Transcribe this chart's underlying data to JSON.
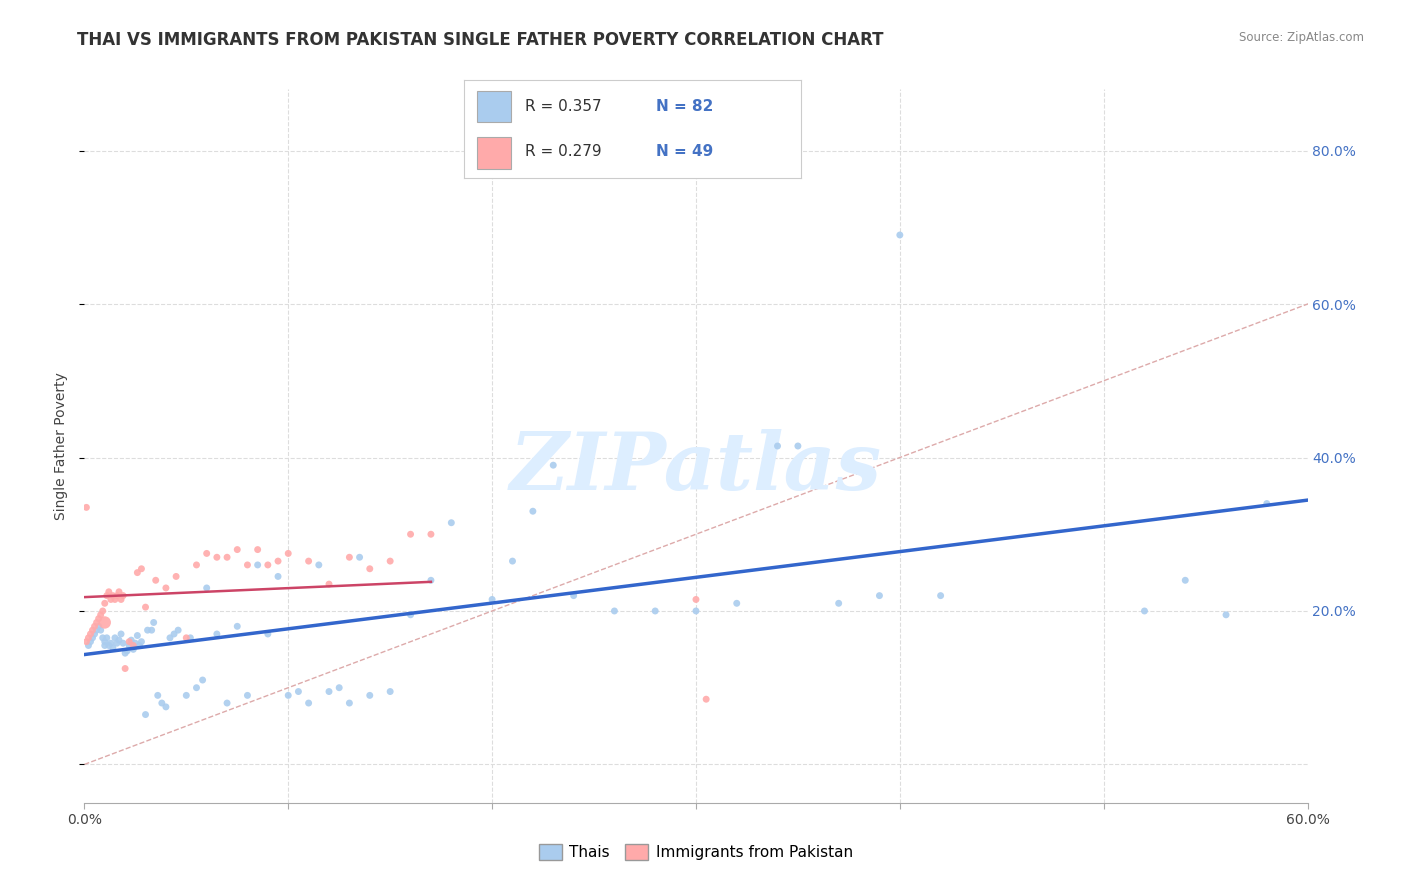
{
  "title": "THAI VS IMMIGRANTS FROM PAKISTAN SINGLE FATHER POVERTY CORRELATION CHART",
  "source": "Source: ZipAtlas.com",
  "ylabel": "Single Father Poverty",
  "xlim": [
    0.0,
    0.6
  ],
  "ylim": [
    -0.05,
    0.88
  ],
  "thai_color": "#aaccee",
  "pak_color": "#ffaaaa",
  "trend_thai_color": "#3366cc",
  "trend_pak_color": "#cc4466",
  "diag_color": "#ddaaaa",
  "watermark": "ZIPatlas",
  "watermark_color": "#ddeeff",
  "thai_R": 0.357,
  "thai_N": 82,
  "pak_R": 0.279,
  "pak_N": 49,
  "thai_x": [
    0.002,
    0.003,
    0.004,
    0.005,
    0.006,
    0.007,
    0.008,
    0.009,
    0.01,
    0.01,
    0.011,
    0.012,
    0.013,
    0.014,
    0.015,
    0.016,
    0.017,
    0.018,
    0.019,
    0.02,
    0.021,
    0.022,
    0.023,
    0.024,
    0.025,
    0.026,
    0.027,
    0.028,
    0.03,
    0.031,
    0.033,
    0.034,
    0.036,
    0.038,
    0.04,
    0.042,
    0.044,
    0.046,
    0.05,
    0.052,
    0.055,
    0.058,
    0.06,
    0.065,
    0.07,
    0.075,
    0.08,
    0.085,
    0.09,
    0.095,
    0.1,
    0.105,
    0.11,
    0.115,
    0.12,
    0.125,
    0.13,
    0.135,
    0.14,
    0.15,
    0.16,
    0.17,
    0.18,
    0.2,
    0.21,
    0.22,
    0.23,
    0.24,
    0.26,
    0.28,
    0.3,
    0.32,
    0.34,
    0.35,
    0.37,
    0.39,
    0.4,
    0.42,
    0.52,
    0.54,
    0.56,
    0.58
  ],
  "thai_y": [
    0.155,
    0.16,
    0.165,
    0.17,
    0.175,
    0.18,
    0.175,
    0.165,
    0.155,
    0.16,
    0.165,
    0.155,
    0.158,
    0.152,
    0.165,
    0.158,
    0.162,
    0.17,
    0.158,
    0.145,
    0.148,
    0.155,
    0.162,
    0.15,
    0.158,
    0.168,
    0.155,
    0.16,
    0.065,
    0.175,
    0.175,
    0.185,
    0.09,
    0.08,
    0.075,
    0.165,
    0.17,
    0.175,
    0.09,
    0.165,
    0.1,
    0.11,
    0.23,
    0.17,
    0.08,
    0.18,
    0.09,
    0.26,
    0.17,
    0.245,
    0.09,
    0.095,
    0.08,
    0.26,
    0.095,
    0.1,
    0.08,
    0.27,
    0.09,
    0.095,
    0.195,
    0.24,
    0.315,
    0.215,
    0.265,
    0.33,
    0.39,
    0.22,
    0.2,
    0.2,
    0.2,
    0.21,
    0.415,
    0.415,
    0.21,
    0.22,
    0.69,
    0.22,
    0.2,
    0.24,
    0.195,
    0.34
  ],
  "thai_sizes": [
    25,
    25,
    25,
    25,
    25,
    25,
    25,
    25,
    25,
    25,
    25,
    25,
    25,
    25,
    25,
    25,
    25,
    25,
    25,
    25,
    25,
    25,
    25,
    25,
    25,
    25,
    25,
    25,
    25,
    25,
    25,
    25,
    25,
    25,
    25,
    25,
    25,
    25,
    25,
    25,
    25,
    25,
    25,
    25,
    25,
    25,
    25,
    25,
    25,
    25,
    25,
    25,
    25,
    25,
    25,
    25,
    25,
    25,
    25,
    25,
    25,
    25,
    25,
    25,
    25,
    25,
    25,
    25,
    25,
    25,
    25,
    25,
    25,
    25,
    25,
    25,
    25,
    25,
    25,
    25,
    25,
    25
  ],
  "pak_x": [
    0.001,
    0.002,
    0.003,
    0.004,
    0.005,
    0.006,
    0.007,
    0.008,
    0.009,
    0.01,
    0.01,
    0.011,
    0.012,
    0.013,
    0.014,
    0.015,
    0.016,
    0.017,
    0.018,
    0.019,
    0.02,
    0.022,
    0.024,
    0.026,
    0.028,
    0.03,
    0.035,
    0.04,
    0.045,
    0.05,
    0.055,
    0.06,
    0.065,
    0.07,
    0.075,
    0.08,
    0.085,
    0.09,
    0.095,
    0.1,
    0.11,
    0.12,
    0.13,
    0.14,
    0.15,
    0.16,
    0.17,
    0.3,
    0.305
  ],
  "pak_y": [
    0.16,
    0.165,
    0.17,
    0.175,
    0.18,
    0.185,
    0.19,
    0.195,
    0.2,
    0.185,
    0.21,
    0.22,
    0.225,
    0.215,
    0.22,
    0.215,
    0.22,
    0.225,
    0.215,
    0.22,
    0.125,
    0.16,
    0.155,
    0.25,
    0.255,
    0.205,
    0.24,
    0.23,
    0.245,
    0.165,
    0.26,
    0.275,
    0.27,
    0.27,
    0.28,
    0.26,
    0.28,
    0.26,
    0.265,
    0.275,
    0.265,
    0.235,
    0.27,
    0.255,
    0.265,
    0.3,
    0.3,
    0.215,
    0.085
  ],
  "pak_sizes": [
    25,
    25,
    25,
    25,
    25,
    25,
    25,
    25,
    25,
    80,
    25,
    25,
    25,
    25,
    25,
    25,
    25,
    25,
    25,
    25,
    25,
    25,
    25,
    25,
    25,
    25,
    25,
    25,
    25,
    25,
    25,
    25,
    25,
    25,
    25,
    25,
    25,
    25,
    25,
    25,
    25,
    25,
    25,
    25,
    25,
    25,
    25,
    25,
    25
  ],
  "pak_outlier_x": [
    0.001
  ],
  "pak_outlier_y": [
    0.335
  ],
  "legend_R_thai": "R = 0.357",
  "legend_N_thai": "N = 82",
  "legend_R_pak": "R = 0.279",
  "legend_N_pak": "N = 49",
  "legend_text_color": "#4472c4",
  "grid_color": "#dddddd",
  "spine_color": "#aaaaaa"
}
